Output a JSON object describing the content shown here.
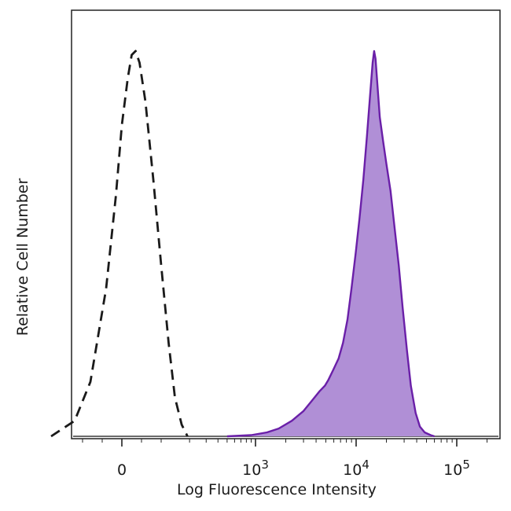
{
  "chart_data": {
    "type": "area",
    "title": "",
    "xlabel": "Log Fluorescence Intensity",
    "ylabel": "Relative Cell Number",
    "x_scale": "biexponential",
    "x_ticks": [
      {
        "value": 0,
        "label": "0"
      },
      {
        "value": 1000,
        "label": "10",
        "exp": "3"
      },
      {
        "value": 10000,
        "label": "10",
        "exp": "4"
      },
      {
        "value": 100000,
        "label": "10",
        "exp": "5"
      }
    ],
    "ylim": [
      0,
      100
    ],
    "grid": false,
    "series": [
      {
        "style": "dashed-outline",
        "color": "#1a1a1a",
        "points": [
          [
            -180,
            0
          ],
          [
            -120,
            4
          ],
          [
            -80,
            14
          ],
          [
            -40,
            38
          ],
          [
            -15,
            62
          ],
          [
            0,
            80
          ],
          [
            15,
            92
          ],
          [
            25,
            98
          ],
          [
            35,
            99
          ],
          [
            45,
            96
          ],
          [
            60,
            86
          ],
          [
            80,
            66
          ],
          [
            100,
            44
          ],
          [
            120,
            24
          ],
          [
            140,
            10
          ],
          [
            165,
            3
          ],
          [
            190,
            0
          ]
        ]
      },
      {
        "style": "filled",
        "color": "#6a1fa8",
        "fill": "#b08fd6",
        "points": [
          [
            500,
            0
          ],
          [
            900,
            0.3
          ],
          [
            1300,
            1
          ],
          [
            1700,
            2
          ],
          [
            2300,
            4
          ],
          [
            3000,
            6.5
          ],
          [
            3600,
            9
          ],
          [
            4300,
            11.5
          ],
          [
            4900,
            13
          ],
          [
            5300,
            14.5
          ],
          [
            5900,
            17
          ],
          [
            6700,
            20
          ],
          [
            7400,
            24
          ],
          [
            8200,
            30
          ],
          [
            9000,
            38
          ],
          [
            9900,
            47
          ],
          [
            10800,
            56
          ],
          [
            11800,
            66
          ],
          [
            12800,
            77
          ],
          [
            13800,
            88
          ],
          [
            14600,
            96
          ],
          [
            15100,
            99
          ],
          [
            15600,
            97
          ],
          [
            16300,
            90
          ],
          [
            17200,
            82
          ],
          [
            18500,
            76
          ],
          [
            20000,
            70
          ],
          [
            22000,
            63
          ],
          [
            24000,
            54
          ],
          [
            26500,
            44
          ],
          [
            29000,
            33
          ],
          [
            32000,
            22
          ],
          [
            35000,
            13
          ],
          [
            39000,
            6
          ],
          [
            43000,
            2.5
          ],
          [
            48000,
            1
          ],
          [
            55000,
            0.3
          ],
          [
            60000,
            0
          ]
        ]
      }
    ]
  }
}
